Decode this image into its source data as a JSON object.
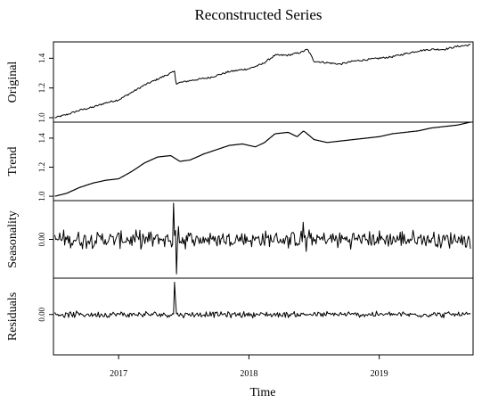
{
  "chart_data": {
    "type": "line",
    "title": "Reconstructed Series",
    "xlabel": "Time",
    "x_ticks": [
      "2017",
      "2018",
      "2019"
    ],
    "x_tick_values": [
      2017,
      2018,
      2019
    ],
    "x_range": [
      2016.5,
      2019.72
    ],
    "grid": false,
    "legend": "none",
    "line_color": "#000000",
    "panels": [
      {
        "name": "Original",
        "ylabel": "Original",
        "ylim": [
          0.97,
          1.51
        ],
        "y_ticks": [
          1.0,
          1.2,
          1.4
        ],
        "y_tick_labels": [
          "1.0",
          "1.2",
          "1.4"
        ],
        "x": [
          2016.51,
          2016.6,
          2016.7,
          2016.8,
          2016.9,
          2017.0,
          2017.1,
          2017.2,
          2017.3,
          2017.4,
          2017.43,
          2017.44,
          2017.55,
          2017.7,
          2017.85,
          2018.0,
          2018.1,
          2018.2,
          2018.3,
          2018.4,
          2018.45,
          2018.5,
          2018.6,
          2018.7,
          2018.8,
          2018.9,
          2019.0,
          2019.1,
          2019.2,
          2019.3,
          2019.4,
          2019.5,
          2019.6,
          2019.7
        ],
        "y": [
          1.0,
          1.02,
          1.05,
          1.07,
          1.1,
          1.12,
          1.17,
          1.22,
          1.26,
          1.3,
          1.31,
          1.23,
          1.25,
          1.27,
          1.31,
          1.33,
          1.36,
          1.42,
          1.42,
          1.44,
          1.46,
          1.38,
          1.37,
          1.36,
          1.38,
          1.39,
          1.4,
          1.41,
          1.43,
          1.45,
          1.46,
          1.46,
          1.48,
          1.49
        ],
        "noise": 0.006
      },
      {
        "name": "Trend",
        "ylabel": "Trend",
        "ylim": [
          0.97,
          1.51
        ],
        "y_ticks": [
          1.0,
          1.2,
          1.4
        ],
        "y_tick_labels": [
          "1.0",
          "1.2",
          "1.4"
        ],
        "x": [
          2016.51,
          2016.6,
          2016.7,
          2016.8,
          2016.9,
          2017.0,
          2017.1,
          2017.2,
          2017.3,
          2017.4,
          2017.47,
          2017.55,
          2017.65,
          2017.75,
          2017.85,
          2017.95,
          2018.05,
          2018.12,
          2018.2,
          2018.3,
          2018.37,
          2018.42,
          2018.5,
          2018.6,
          2018.7,
          2018.8,
          2018.9,
          2019.0,
          2019.1,
          2019.2,
          2019.3,
          2019.4,
          2019.5,
          2019.6,
          2019.7
        ],
        "y": [
          1.0,
          1.02,
          1.06,
          1.09,
          1.11,
          1.12,
          1.17,
          1.23,
          1.27,
          1.28,
          1.24,
          1.25,
          1.29,
          1.32,
          1.35,
          1.36,
          1.34,
          1.37,
          1.43,
          1.44,
          1.41,
          1.45,
          1.39,
          1.37,
          1.38,
          1.39,
          1.4,
          1.41,
          1.43,
          1.44,
          1.45,
          1.47,
          1.48,
          1.49,
          1.51
        ],
        "noise": 0
      },
      {
        "name": "Seasonality",
        "ylabel": "Seasonality",
        "ylim": [
          -0.045,
          0.045
        ],
        "y_ticks": [
          0.0
        ],
        "y_tick_labels": [
          "0.00"
        ],
        "amplitude": 0.008,
        "spikes": [
          {
            "x": 2017.42,
            "y": 0.042
          },
          {
            "x": 2017.445,
            "y": -0.04
          },
          {
            "x": 2017.46,
            "y": 0.015
          },
          {
            "x": 2018.42,
            "y": 0.02
          },
          {
            "x": 2018.44,
            "y": -0.014
          }
        ]
      },
      {
        "name": "Residuals",
        "ylabel": "Residuals",
        "ylim": [
          -0.05,
          0.045
        ],
        "y_ticks": [
          0.0
        ],
        "y_tick_labels": [
          "0.00"
        ],
        "amplitude": 0.003,
        "spikes": [
          {
            "x": 2017.43,
            "y": 0.04
          },
          {
            "x": 2017.435,
            "y": -0.048
          },
          {
            "x": 2017.44,
            "y": 0.018
          }
        ]
      }
    ]
  }
}
